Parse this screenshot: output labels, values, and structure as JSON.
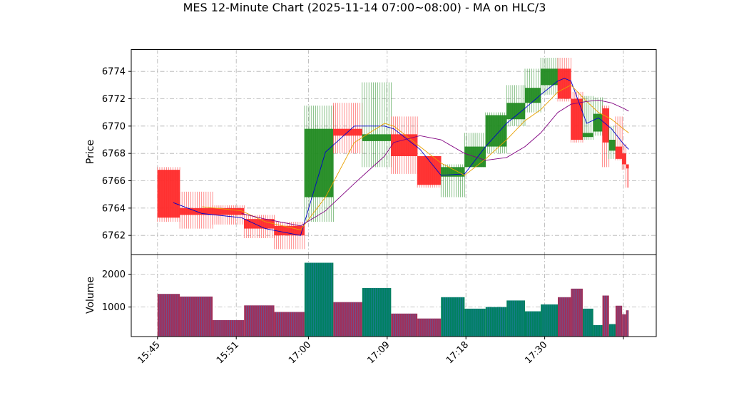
{
  "chart_data": {
    "type": "candlestick",
    "title": "MES 12-Minute Chart (2025-11-14 07:00~08:00) - MA on HLC/3",
    "price_panel": {
      "ylabel": "Price",
      "ylim": [
        6760.6,
        6775.6
      ],
      "yticks": [
        6762,
        6764,
        6766,
        6768,
        6770,
        6772,
        6774
      ],
      "grid": true
    },
    "volume_panel": {
      "ylabel": "Volume",
      "ylim": [
        100,
        2600
      ],
      "yticks": [
        1000,
        2000
      ],
      "grid": true
    },
    "x_ticks": [
      {
        "label": "15:45",
        "pos": 0.0
      },
      {
        "label": "15:51",
        "pos": 3.0
      },
      {
        "label": "17:00",
        "pos": 5.75
      },
      {
        "label": "17:09",
        "pos": 8.75
      },
      {
        "label": "17:18",
        "pos": 11.75
      },
      {
        "label": "17:30",
        "pos": 14.75
      },
      {
        "label": "",
        "pos": 17.75
      }
    ],
    "x_range": [
      -1.0,
      19.0
    ],
    "bars": [
      {
        "x0": 0.0,
        "x1": 0.85,
        "open": 6766.8,
        "high": 6767.0,
        "low": 6763.0,
        "close": 6763.3,
        "volume": 1400
      },
      {
        "x0": 0.85,
        "x1": 2.1,
        "open": 6764.0,
        "high": 6765.2,
        "low": 6762.5,
        "close": 6763.5,
        "volume": 1320
      },
      {
        "x0": 2.1,
        "x1": 3.3,
        "open": 6764.0,
        "high": 6764.2,
        "low": 6762.8,
        "close": 6763.5,
        "volume": 600
      },
      {
        "x0": 3.3,
        "x1": 4.45,
        "open": 6763.2,
        "high": 6763.5,
        "low": 6761.8,
        "close": 6762.5,
        "volume": 1050
      },
      {
        "x0": 4.45,
        "x1": 5.6,
        "open": 6762.7,
        "high": 6763.0,
        "low": 6761.0,
        "close": 6762.0,
        "volume": 850
      },
      {
        "x0": 5.6,
        "x1": 6.7,
        "open": 6764.8,
        "high": 6771.5,
        "low": 6763.0,
        "close": 6769.8,
        "volume": 2350
      },
      {
        "x0": 6.7,
        "x1": 7.8,
        "open": 6769.8,
        "high": 6771.7,
        "low": 6768.0,
        "close": 6769.3,
        "volume": 1150
      },
      {
        "x0": 7.8,
        "x1": 8.9,
        "open": 6768.9,
        "high": 6773.2,
        "low": 6767.0,
        "close": 6769.4,
        "volume": 1580
      },
      {
        "x0": 8.9,
        "x1": 9.9,
        "open": 6769.4,
        "high": 6770.7,
        "low": 6766.5,
        "close": 6767.8,
        "volume": 800
      },
      {
        "x0": 9.9,
        "x1": 10.8,
        "open": 6767.8,
        "high": 6767.8,
        "low": 6765.5,
        "close": 6765.7,
        "volume": 650
      },
      {
        "x0": 10.8,
        "x1": 11.7,
        "open": 6766.3,
        "high": 6767.2,
        "low": 6764.8,
        "close": 6767.0,
        "volume": 1300
      },
      {
        "x0": 11.7,
        "x1": 12.5,
        "open": 6767.0,
        "high": 6769.5,
        "low": 6767.0,
        "close": 6768.5,
        "volume": 950
      },
      {
        "x0": 12.5,
        "x1": 13.3,
        "open": 6768.5,
        "high": 6771.0,
        "low": 6768.0,
        "close": 6770.8,
        "volume": 1000
      },
      {
        "x0": 13.3,
        "x1": 14.0,
        "open": 6770.5,
        "high": 6773.0,
        "low": 6770.0,
        "close": 6771.7,
        "volume": 1200
      },
      {
        "x0": 14.0,
        "x1": 14.6,
        "open": 6771.7,
        "high": 6774.2,
        "low": 6771.0,
        "close": 6772.8,
        "volume": 870
      },
      {
        "x0": 14.6,
        "x1": 15.25,
        "open": 6773.0,
        "high": 6775.0,
        "low": 6772.3,
        "close": 6774.2,
        "volume": 1080
      },
      {
        "x0": 15.25,
        "x1": 15.75,
        "open": 6774.2,
        "high": 6775.0,
        "low": 6771.8,
        "close": 6772.0,
        "volume": 1300
      },
      {
        "x0": 15.75,
        "x1": 16.2,
        "open": 6772.0,
        "high": 6772.5,
        "low": 6768.8,
        "close": 6769.0,
        "volume": 1560
      },
      {
        "x0": 16.2,
        "x1": 16.6,
        "open": 6769.2,
        "high": 6772.2,
        "low": 6769.0,
        "close": 6769.5,
        "volume": 950
      },
      {
        "x0": 16.6,
        "x1": 16.95,
        "open": 6769.6,
        "high": 6772.1,
        "low": 6769.3,
        "close": 6770.9,
        "volume": 450
      },
      {
        "x0": 16.95,
        "x1": 17.2,
        "open": 6771.3,
        "high": 6771.5,
        "low": 6767.0,
        "close": 6768.8,
        "volume": 1350
      },
      {
        "x0": 17.2,
        "x1": 17.45,
        "open": 6768.2,
        "high": 6770.0,
        "low": 6767.6,
        "close": 6769.0,
        "volume": 480
      },
      {
        "x0": 17.45,
        "x1": 17.7,
        "open": 6768.5,
        "high": 6770.7,
        "low": 6767.5,
        "close": 6767.6,
        "volume": 1040
      },
      {
        "x0": 17.7,
        "x1": 17.85,
        "open": 6768.0,
        "high": 6768.7,
        "low": 6766.8,
        "close": 6767.2,
        "volume": 780
      },
      {
        "x0": 17.85,
        "x1": 17.95,
        "open": 6767.2,
        "high": 6767.2,
        "low": 6765.5,
        "close": 6766.9,
        "volume": 900
      }
    ],
    "ma_lines": [
      {
        "color": "#0000cc",
        "points": [
          [
            0.6,
            6764.4
          ],
          [
            1.7,
            6763.6
          ],
          [
            3.2,
            6763.3
          ],
          [
            4.1,
            6762.5
          ],
          [
            5.45,
            6762.0
          ],
          [
            6.4,
            6768.1
          ],
          [
            7.5,
            6770.0
          ],
          [
            8.65,
            6770.0
          ],
          [
            9.0,
            6769.8
          ],
          [
            10.0,
            6768.3
          ],
          [
            10.8,
            6766.4
          ],
          [
            11.7,
            6766.5
          ],
          [
            12.5,
            6768.5
          ],
          [
            13.3,
            6770.2
          ],
          [
            14.0,
            6771.3
          ],
          [
            14.6,
            6772.3
          ],
          [
            15.25,
            6773.3
          ],
          [
            15.5,
            6773.5
          ],
          [
            15.75,
            6773.3
          ],
          [
            16.35,
            6770.2
          ],
          [
            16.8,
            6770.6
          ],
          [
            17.3,
            6769.8
          ],
          [
            17.75,
            6768.7
          ],
          [
            17.95,
            6768.3
          ]
        ]
      },
      {
        "color": "#e8a000",
        "points": [
          [
            1.7,
            6764.1
          ],
          [
            3.2,
            6763.8
          ],
          [
            4.1,
            6763.0
          ],
          [
            5.45,
            6762.4
          ],
          [
            6.4,
            6764.8
          ],
          [
            7.5,
            6768.8
          ],
          [
            8.65,
            6770.2
          ],
          [
            9.0,
            6770.0
          ],
          [
            10.0,
            6768.5
          ],
          [
            10.8,
            6767.3
          ],
          [
            11.7,
            6766.4
          ],
          [
            12.5,
            6767.6
          ],
          [
            13.3,
            6769.0
          ],
          [
            14.0,
            6770.4
          ],
          [
            14.6,
            6771.2
          ],
          [
            15.25,
            6772.5
          ],
          [
            15.75,
            6773.0
          ],
          [
            16.35,
            6771.8
          ],
          [
            16.8,
            6771.0
          ],
          [
            17.3,
            6770.5
          ],
          [
            17.75,
            6769.8
          ],
          [
            17.95,
            6769.5
          ]
        ]
      },
      {
        "color": "#800080",
        "points": [
          [
            3.2,
            6763.6
          ],
          [
            4.1,
            6763.2
          ],
          [
            5.45,
            6762.7
          ],
          [
            6.4,
            6763.8
          ],
          [
            7.5,
            6765.8
          ],
          [
            8.65,
            6767.8
          ],
          [
            9.0,
            6768.8
          ],
          [
            10.0,
            6769.3
          ],
          [
            10.8,
            6769.0
          ],
          [
            11.7,
            6768.0
          ],
          [
            12.5,
            6767.5
          ],
          [
            13.3,
            6767.7
          ],
          [
            14.0,
            6768.5
          ],
          [
            14.6,
            6769.5
          ],
          [
            15.25,
            6771.0
          ],
          [
            15.75,
            6771.6
          ],
          [
            16.35,
            6771.8
          ],
          [
            16.8,
            6771.9
          ],
          [
            17.3,
            6771.7
          ],
          [
            17.75,
            6771.3
          ],
          [
            17.95,
            6771.1
          ]
        ]
      }
    ],
    "up_color": "#228B22",
    "down_color": "#ff2a2a",
    "vol_up_color": "#008060",
    "vol_down_color": "#a0305a",
    "grid_color": "#b0b0b0"
  }
}
